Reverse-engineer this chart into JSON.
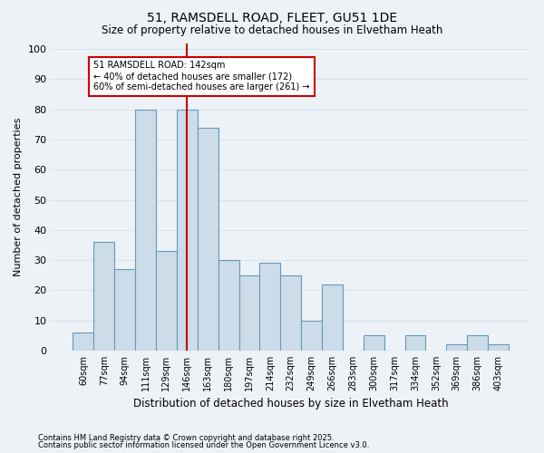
{
  "title": "51, RAMSDELL ROAD, FLEET, GU51 1DE",
  "subtitle": "Size of property relative to detached houses in Elvetham Heath",
  "xlabel": "Distribution of detached houses by size in Elvetham Heath",
  "ylabel": "Number of detached properties",
  "categories": [
    "60sqm",
    "77sqm",
    "94sqm",
    "111sqm",
    "129sqm",
    "146sqm",
    "163sqm",
    "180sqm",
    "197sqm",
    "214sqm",
    "232sqm",
    "249sqm",
    "266sqm",
    "283sqm",
    "300sqm",
    "317sqm",
    "334sqm",
    "352sqm",
    "369sqm",
    "386sqm",
    "403sqm"
  ],
  "values": [
    6,
    36,
    27,
    80,
    33,
    80,
    74,
    30,
    25,
    29,
    25,
    10,
    22,
    0,
    5,
    0,
    5,
    0,
    2,
    5,
    2
  ],
  "bar_color": "#ccdce8",
  "bar_edge_color": "#6699bb",
  "vline_x_index": 5,
  "vline_color": "#cc0000",
  "annotation_text": "51 RAMSDELL ROAD: 142sqm\n← 40% of detached houses are smaller (172)\n60% of semi-detached houses are larger (261) →",
  "annotation_box_color": "#ffffff",
  "annotation_box_edge": "#cc0000",
  "ylim": [
    0,
    100
  ],
  "yticks": [
    0,
    10,
    20,
    30,
    40,
    50,
    60,
    70,
    80,
    90,
    100
  ],
  "background_color": "#edf2f7",
  "grid_color": "#d8e4ee",
  "footer1": "Contains HM Land Registry data © Crown copyright and database right 2025.",
  "footer2": "Contains public sector information licensed under the Open Government Licence v3.0."
}
